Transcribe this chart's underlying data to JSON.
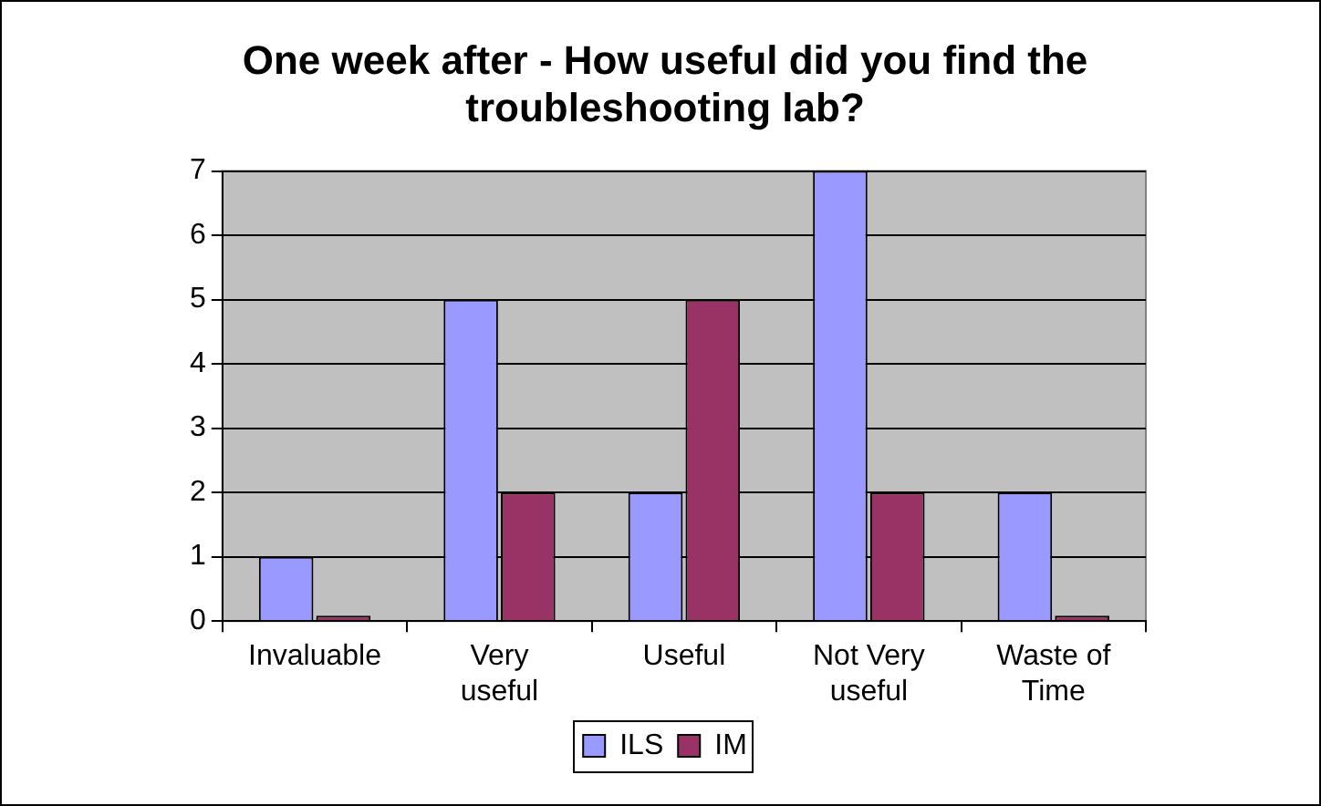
{
  "chart_data": {
    "type": "bar",
    "title": "One week after - How useful did you find the troubleshooting lab?",
    "categories": [
      "Invaluable",
      "Very useful",
      "Useful",
      "Not Very useful",
      "Waste of Time"
    ],
    "series": [
      {
        "name": "ILS",
        "color": "#9999ff",
        "values": [
          1,
          5,
          2,
          7,
          2
        ]
      },
      {
        "name": "IM",
        "color": "#993366",
        "values": [
          0,
          2,
          5,
          2,
          0
        ]
      }
    ],
    "ylim": [
      0,
      7
    ],
    "yticks": [
      0,
      1,
      2,
      3,
      4,
      5,
      6,
      7
    ],
    "grid": "y",
    "legend": "bottom"
  }
}
